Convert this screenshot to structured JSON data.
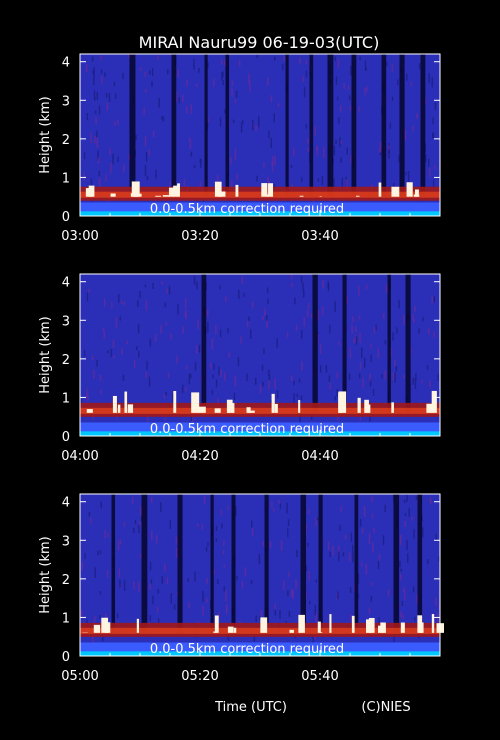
{
  "figure": {
    "title": "MIRAI Nauru99 06-19-03(UTC)",
    "xlabel": "Time (UTC)",
    "credit": "(C)NIES"
  },
  "chart_data": [
    {
      "type": "heatmap",
      "ylabel": "Height (km)",
      "ylim": [
        0,
        4.2
      ],
      "yticks": [
        "0",
        "1",
        "2",
        "3",
        "4"
      ],
      "xticks": [
        "03:00",
        "03:20",
        "03:40"
      ],
      "annotation": "0.0-0.5km correction required",
      "cloud_base_km": 0.5,
      "max_echo_km": 0.9,
      "dark_bands_min": [
        8.5,
        15.5,
        21.0,
        24.5,
        34.5,
        38.5,
        41.5,
        45.5,
        50.5,
        53.5,
        57.0
      ]
    },
    {
      "type": "heatmap",
      "ylabel": "Height (km)",
      "ylim": [
        0,
        4.2
      ],
      "yticks": [
        "0",
        "1",
        "2",
        "3",
        "4"
      ],
      "xticks": [
        "04:00",
        "04:20",
        "04:40"
      ],
      "annotation": "0.0-0.5km correction required",
      "cloud_base_km": 0.6,
      "max_echo_km": 1.2,
      "dark_bands_min": [
        20.5,
        39.0,
        44.0,
        51.5,
        54.5
      ]
    },
    {
      "type": "heatmap",
      "ylabel": "Height (km)",
      "ylim": [
        0,
        4.2
      ],
      "yticks": [
        "0",
        "1",
        "2",
        "3",
        "4"
      ],
      "xticks": [
        "05:00",
        "05:20",
        "05:40"
      ],
      "annotation": "0.0-0.5km correction required",
      "cloud_base_km": 0.6,
      "max_echo_km": 1.1,
      "dark_bands_min": [
        5.5,
        10.5,
        16.5,
        22.0,
        25.5,
        31.0,
        37.0,
        40.0,
        46.0,
        52.5,
        56.5
      ]
    }
  ]
}
